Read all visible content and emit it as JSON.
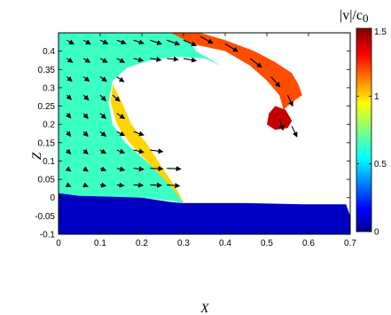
{
  "chart_data": {
    "type": "heatmap",
    "title": "",
    "xlabel": "X",
    "ylabel": "Z",
    "xlim": [
      0,
      0.7
    ],
    "ylim": [
      -0.1,
      0.45
    ],
    "xticks": [
      "0",
      "0.1",
      "0.2",
      "0.3",
      "0.4",
      "0.5",
      "0.6",
      "0.7"
    ],
    "xtick_values": [
      0,
      0.1,
      0.2,
      0.3,
      0.4,
      0.5,
      0.6,
      0.7
    ],
    "yticks": [
      "-0.1",
      "-0.05",
      "0",
      "0.05",
      "0.1",
      "0.15",
      "0.2",
      "0.25",
      "0.3",
      "0.35",
      "0.4"
    ],
    "ytick_values": [
      -0.1,
      -0.05,
      0,
      0.05,
      0.1,
      0.15,
      0.2,
      0.25,
      0.3,
      0.35,
      0.4
    ],
    "colorbar": {
      "label": "|v|/c",
      "label_subscript": "0",
      "range": [
        0,
        1.5
      ],
      "ticks": [
        "0",
        "0.5",
        "1",
        "1.5"
      ],
      "tick_values": [
        0,
        0.5,
        1,
        1.5
      ],
      "colormap": "jet"
    },
    "grid": false,
    "field": "velocity magnitude |v|/c0 with velocity vector arrows over a breaking wave crest",
    "regions": [
      {
        "name": "water-below-trough",
        "value": 0.1,
        "polygon": [
          [
            0,
            -0.1
          ],
          [
            0.7,
            -0.1
          ],
          [
            0.7,
            -0.05
          ],
          [
            0.69,
            -0.018
          ],
          [
            0.59,
            -0.018
          ],
          [
            0.45,
            -0.015
          ],
          [
            0.3,
            -0.015
          ],
          [
            0.27,
            -0.012
          ],
          [
            0.2,
            0
          ],
          [
            0,
            0.012
          ]
        ]
      },
      {
        "name": "wave-body-back",
        "value": 0.65,
        "polygon": [
          [
            0,
            0.012
          ],
          [
            0.05,
            0.005
          ],
          [
            0.2,
            0
          ],
          [
            0.28,
            -0.01
          ],
          [
            0.3,
            -0.015
          ],
          [
            0.285,
            0.02
          ],
          [
            0.22,
            0.09
          ],
          [
            0.16,
            0.15
          ],
          [
            0.13,
            0.2
          ],
          [
            0.12,
            0.26
          ],
          [
            0.13,
            0.32
          ],
          [
            0.165,
            0.355
          ],
          [
            0.22,
            0.375
          ],
          [
            0.28,
            0.385
          ],
          [
            0.35,
            0.38
          ],
          [
            0.39,
            0.36
          ],
          [
            0.33,
            0.4
          ],
          [
            0.3,
            0.45
          ],
          [
            0,
            0.45
          ]
        ]
      },
      {
        "name": "wave-face",
        "value": 1.0,
        "polygon": [
          [
            0.3,
            -0.015
          ],
          [
            0.27,
            0.03
          ],
          [
            0.22,
            0.09
          ],
          [
            0.17,
            0.15
          ],
          [
            0.14,
            0.2
          ],
          [
            0.125,
            0.26
          ],
          [
            0.13,
            0.31
          ],
          [
            0.15,
            0.265
          ],
          [
            0.175,
            0.2
          ],
          [
            0.21,
            0.15
          ],
          [
            0.25,
            0.08
          ],
          [
            0.28,
            0.03
          ]
        ]
      },
      {
        "name": "crest-band",
        "value": 1.2,
        "polygon": [
          [
            0.27,
            0.45
          ],
          [
            0.32,
            0.42
          ],
          [
            0.4,
            0.4
          ],
          [
            0.46,
            0.36
          ],
          [
            0.5,
            0.32
          ],
          [
            0.53,
            0.28
          ],
          [
            0.54,
            0.24
          ],
          [
            0.56,
            0.26
          ],
          [
            0.585,
            0.28
          ],
          [
            0.575,
            0.31
          ],
          [
            0.56,
            0.34
          ],
          [
            0.52,
            0.37
          ],
          [
            0.47,
            0.4
          ],
          [
            0.4,
            0.43
          ],
          [
            0.34,
            0.45
          ]
        ]
      },
      {
        "name": "plunging-jet",
        "value": 1.4,
        "polygon": [
          [
            0.5,
            0.2
          ],
          [
            0.52,
            0.185
          ],
          [
            0.55,
            0.19
          ],
          [
            0.56,
            0.21
          ],
          [
            0.545,
            0.24
          ],
          [
            0.52,
            0.25
          ],
          [
            0.505,
            0.23
          ]
        ]
      }
    ],
    "vectors": [
      {
        "x": 0.02,
        "z": 0.43,
        "u": 0.55,
        "w": -0.35
      },
      {
        "x": 0.06,
        "z": 0.43,
        "u": 0.55,
        "w": -0.35
      },
      {
        "x": 0.1,
        "z": 0.43,
        "u": 0.6,
        "w": -0.33
      },
      {
        "x": 0.14,
        "z": 0.43,
        "u": 0.7,
        "w": -0.3
      },
      {
        "x": 0.18,
        "z": 0.43,
        "u": 0.8,
        "w": -0.3
      },
      {
        "x": 0.22,
        "z": 0.43,
        "u": 0.9,
        "w": -0.35
      },
      {
        "x": 0.26,
        "z": 0.43,
        "u": 1.0,
        "w": -0.4
      },
      {
        "x": 0.3,
        "z": 0.43,
        "u": 1.0,
        "w": -0.5
      },
      {
        "x": 0.02,
        "z": 0.38,
        "u": 0.45,
        "w": -0.35
      },
      {
        "x": 0.06,
        "z": 0.38,
        "u": 0.5,
        "w": -0.35
      },
      {
        "x": 0.1,
        "z": 0.38,
        "u": 0.55,
        "w": -0.35
      },
      {
        "x": 0.14,
        "z": 0.38,
        "u": 0.6,
        "w": -0.35
      },
      {
        "x": 0.18,
        "z": 0.38,
        "u": 0.75,
        "w": -0.2
      },
      {
        "x": 0.22,
        "z": 0.38,
        "u": 0.85,
        "w": -0.15
      },
      {
        "x": 0.26,
        "z": 0.38,
        "u": 0.9,
        "w": -0.1
      },
      {
        "x": 0.3,
        "z": 0.38,
        "u": 1.0,
        "w": -0.2
      },
      {
        "x": 0.02,
        "z": 0.33,
        "u": 0.4,
        "w": -0.4
      },
      {
        "x": 0.06,
        "z": 0.33,
        "u": 0.45,
        "w": -0.4
      },
      {
        "x": 0.1,
        "z": 0.33,
        "u": 0.5,
        "w": -0.4
      },
      {
        "x": 0.14,
        "z": 0.33,
        "u": 0.55,
        "w": -0.45
      },
      {
        "x": 0.02,
        "z": 0.28,
        "u": 0.35,
        "w": -0.4
      },
      {
        "x": 0.06,
        "z": 0.28,
        "u": 0.4,
        "w": -0.45
      },
      {
        "x": 0.1,
        "z": 0.28,
        "u": 0.45,
        "w": -0.5
      },
      {
        "x": 0.13,
        "z": 0.28,
        "u": 0.55,
        "w": -0.55
      },
      {
        "x": 0.02,
        "z": 0.23,
        "u": 0.3,
        "w": -0.4
      },
      {
        "x": 0.06,
        "z": 0.23,
        "u": 0.35,
        "w": -0.45
      },
      {
        "x": 0.1,
        "z": 0.23,
        "u": 0.45,
        "w": -0.45
      },
      {
        "x": 0.14,
        "z": 0.23,
        "u": 0.6,
        "w": -0.45
      },
      {
        "x": 0.02,
        "z": 0.18,
        "u": 0.3,
        "w": -0.4
      },
      {
        "x": 0.06,
        "z": 0.18,
        "u": 0.35,
        "w": -0.4
      },
      {
        "x": 0.1,
        "z": 0.18,
        "u": 0.45,
        "w": -0.4
      },
      {
        "x": 0.14,
        "z": 0.18,
        "u": 0.6,
        "w": -0.35
      },
      {
        "x": 0.18,
        "z": 0.18,
        "u": 0.8,
        "w": -0.3
      },
      {
        "x": 0.02,
        "z": 0.13,
        "u": 0.3,
        "w": -0.35
      },
      {
        "x": 0.06,
        "z": 0.13,
        "u": 0.35,
        "w": -0.35
      },
      {
        "x": 0.1,
        "z": 0.13,
        "u": 0.45,
        "w": -0.3
      },
      {
        "x": 0.14,
        "z": 0.13,
        "u": 0.6,
        "w": -0.25
      },
      {
        "x": 0.18,
        "z": 0.13,
        "u": 0.8,
        "w": -0.2
      },
      {
        "x": 0.22,
        "z": 0.13,
        "u": 1.0,
        "w": -0.15
      },
      {
        "x": 0.02,
        "z": 0.08,
        "u": 0.3,
        "w": -0.25
      },
      {
        "x": 0.06,
        "z": 0.08,
        "u": 0.35,
        "w": -0.25
      },
      {
        "x": 0.1,
        "z": 0.08,
        "u": 0.45,
        "w": -0.2
      },
      {
        "x": 0.14,
        "z": 0.08,
        "u": 0.6,
        "w": -0.15
      },
      {
        "x": 0.18,
        "z": 0.08,
        "u": 0.8,
        "w": -0.1
      },
      {
        "x": 0.22,
        "z": 0.08,
        "u": 1.0,
        "w": -0.05
      },
      {
        "x": 0.26,
        "z": 0.08,
        "u": 1.1,
        "w": -0.05
      },
      {
        "x": 0.02,
        "z": 0.035,
        "u": 0.3,
        "w": -0.15
      },
      {
        "x": 0.06,
        "z": 0.035,
        "u": 0.35,
        "w": -0.15
      },
      {
        "x": 0.1,
        "z": 0.035,
        "u": 0.45,
        "w": -0.1
      },
      {
        "x": 0.14,
        "z": 0.035,
        "u": 0.55,
        "w": -0.08
      },
      {
        "x": 0.18,
        "z": 0.035,
        "u": 0.75,
        "w": -0.05
      },
      {
        "x": 0.22,
        "z": 0.035,
        "u": 0.9,
        "w": -0.05
      },
      {
        "x": 0.26,
        "z": 0.035,
        "u": 1.0,
        "w": -0.1
      },
      {
        "x": 0.34,
        "z": 0.44,
        "u": 1.0,
        "w": -0.6
      },
      {
        "x": 0.4,
        "z": 0.42,
        "u": 1.0,
        "w": -0.7
      },
      {
        "x": 0.46,
        "z": 0.38,
        "u": 0.9,
        "w": -0.8
      },
      {
        "x": 0.51,
        "z": 0.33,
        "u": 0.7,
        "w": -0.9
      },
      {
        "x": 0.55,
        "z": 0.28,
        "u": 0.4,
        "w": -1.0
      },
      {
        "x": 0.53,
        "z": 0.215,
        "u": 0.3,
        "w": -1.0
      },
      {
        "x": 0.56,
        "z": 0.195,
        "u": 0.4,
        "w": -0.95
      }
    ]
  }
}
